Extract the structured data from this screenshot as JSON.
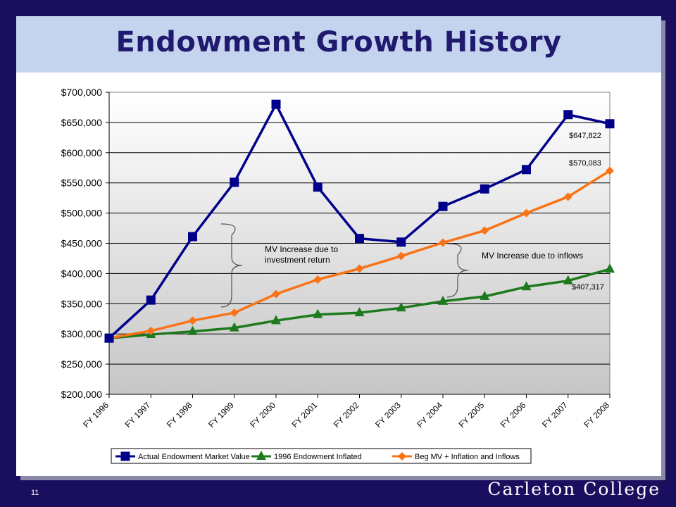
{
  "slide": {
    "title": "Endowment Growth History",
    "page_number": "11",
    "institution": "Carleton College"
  },
  "colors": {
    "background": "#1a0f5e",
    "title_band": "#c5d4ee",
    "title_text": "#1f1a6e",
    "actual_series": "#00008b",
    "inflated_series": "#1e7a1e",
    "beg_series": "#f97316"
  },
  "chart_data": {
    "type": "line",
    "title": "",
    "xlabel": "",
    "ylabel": "",
    "categories": [
      "FY 1996",
      "FY 1997",
      "FY 1998",
      "FY 1999",
      "FY 2000",
      "FY 2001",
      "FY 2002",
      "FY 2003",
      "FY 2004",
      "FY 2005",
      "FY 2006",
      "FY 2007",
      "FY 2008"
    ],
    "ylim": [
      200000,
      700000
    ],
    "yticks": [
      200000,
      250000,
      300000,
      350000,
      400000,
      450000,
      500000,
      550000,
      600000,
      650000,
      700000
    ],
    "ytick_labels": [
      "$200,000",
      "$250,000",
      "$300,000",
      "$350,000",
      "$400,000",
      "$450,000",
      "$500,000",
      "$550,000",
      "$600,000",
      "$650,000",
      "$700,000"
    ],
    "grid": true,
    "legend_position": "bottom",
    "series": [
      {
        "name": "Actual Endowment Market Value",
        "color": "#00008b",
        "marker": "square",
        "values": [
          293000,
          356000,
          461000,
          551000,
          680000,
          543000,
          458000,
          452000,
          511000,
          540000,
          572000,
          663000,
          647822
        ]
      },
      {
        "name": "1996 Endowment Inflated",
        "color": "#1e7a1e",
        "marker": "triangle",
        "values": [
          293000,
          299000,
          304000,
          310000,
          322000,
          332000,
          335000,
          343000,
          354000,
          362000,
          378000,
          388000,
          407317
        ]
      },
      {
        "name": "Beg MV + Inflation and Inflows",
        "color": "#f97316",
        "marker": "diamond",
        "values": [
          293000,
          305000,
          322000,
          335000,
          366000,
          390000,
          408000,
          429000,
          451000,
          471000,
          500000,
          527000,
          570083
        ]
      }
    ],
    "annotations": [
      {
        "id": "actual-end",
        "text": "$647,822"
      },
      {
        "id": "beg-end",
        "text": "$570,083"
      },
      {
        "id": "inflated-end",
        "text": "$407,317"
      },
      {
        "id": "investment",
        "lines": [
          "MV Increase due to",
          "investment return"
        ]
      },
      {
        "id": "inflows",
        "lines": [
          "MV Increase due to inflows"
        ]
      }
    ]
  }
}
